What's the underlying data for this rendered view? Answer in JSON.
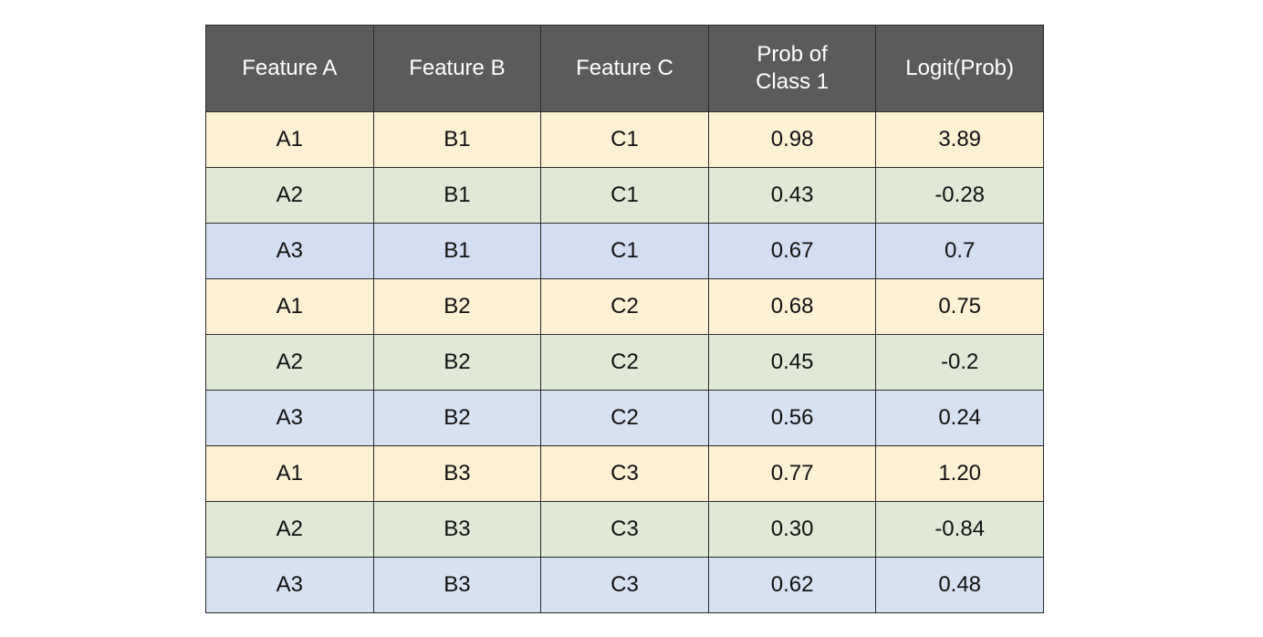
{
  "chart_data": {
    "type": "table",
    "columns": [
      "Feature A",
      "Feature B",
      "Feature C",
      "Prob of\nClass 1",
      "Logit(Prob)"
    ],
    "column_lines": [
      [
        "Feature A"
      ],
      [
        "Feature B"
      ],
      [
        "Feature C"
      ],
      [
        "Prob of",
        "Class 1"
      ],
      [
        "Logit(Prob)"
      ]
    ],
    "rows": [
      {
        "cells": [
          "A1",
          "B1",
          "C1",
          "0.98",
          "3.89"
        ],
        "color": "#fdf1d4"
      },
      {
        "cells": [
          "A2",
          "B1",
          "C1",
          "0.43",
          "-0.28"
        ],
        "color": "#dfe9d6"
      },
      {
        "cells": [
          "A3",
          "B1",
          "C1",
          "0.67",
          "0.7"
        ],
        "color": "#d4def2"
      },
      {
        "cells": [
          "A1",
          "B2",
          "C2",
          "0.68",
          "0.75"
        ],
        "color": "#fdf1d4"
      },
      {
        "cells": [
          "A2",
          "B2",
          "C2",
          "0.45",
          "-0.2"
        ],
        "color": "#dfe9d6"
      },
      {
        "cells": [
          "A3",
          "B2",
          "C2",
          "0.56",
          "0.24"
        ],
        "color": "#d6e1f1"
      },
      {
        "cells": [
          "A1",
          "B3",
          "C3",
          "0.77",
          "1.20"
        ],
        "color": "#fdf1d4"
      },
      {
        "cells": [
          "A2",
          "B3",
          "C3",
          "0.30",
          "-0.84"
        ],
        "color": "#dfe9d6"
      },
      {
        "cells": [
          "A3",
          "B3",
          "C3",
          "0.62",
          "0.48"
        ],
        "color": "#d6e1f1"
      }
    ],
    "header_color": "#5b5b5b",
    "border_color": "#2b2b2b"
  }
}
